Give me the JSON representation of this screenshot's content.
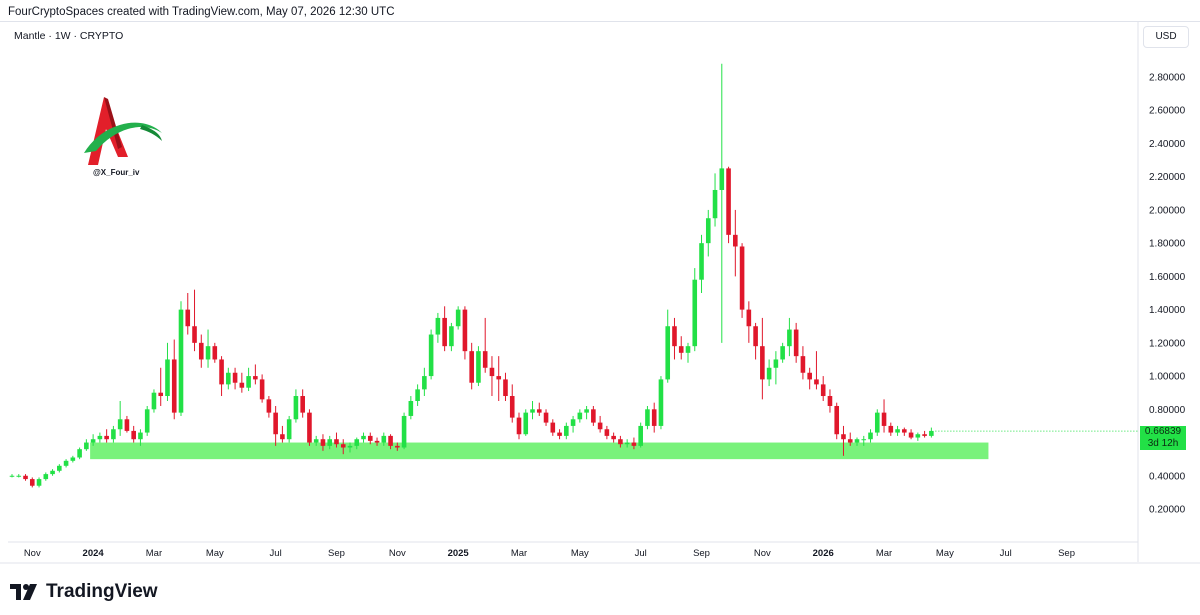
{
  "header": {
    "attribution": "FourCryptoSpaces created with TradingView.com, May 07, 2026 12:30 UTC"
  },
  "symbol": {
    "label": "Mantle · 1W · CRYPTO"
  },
  "currency": {
    "label": "USD"
  },
  "watermark": {
    "handle": "@X_Four_iv"
  },
  "last_price": {
    "value": "0.66839",
    "countdown": "3d 12h"
  },
  "footer": {
    "brand": "TradingView"
  },
  "colors": {
    "up": "#22e046",
    "down": "#e0172b",
    "support_zone": "#79f27b",
    "price_tag": "#22e046"
  },
  "chart_data": {
    "type": "candlestick",
    "title": "",
    "ylim": [
      0.0,
      3.0
    ],
    "y_ticks": [
      0.2,
      0.4,
      0.6,
      0.8,
      1.0,
      1.2,
      1.4,
      1.6,
      1.8,
      2.0,
      2.2,
      2.4,
      2.6,
      2.8
    ],
    "y_tick_labels": [
      "0.20000",
      "0.40000",
      "0.60000",
      "0.80000",
      "1.00000",
      "1.20000",
      "1.40000",
      "1.60000",
      "1.80000",
      "2.00000",
      "2.20000",
      "2.40000",
      "2.60000",
      "2.80000"
    ],
    "x_labels": [
      {
        "label": "Nov",
        "bold": false,
        "week": 3
      },
      {
        "label": "2024",
        "bold": true,
        "week": 12
      },
      {
        "label": "Mar",
        "bold": false,
        "week": 21
      },
      {
        "label": "May",
        "bold": false,
        "week": 30
      },
      {
        "label": "Jul",
        "bold": false,
        "week": 39
      },
      {
        "label": "Sep",
        "bold": false,
        "week": 48
      },
      {
        "label": "Nov",
        "bold": false,
        "week": 57
      },
      {
        "label": "2025",
        "bold": true,
        "week": 66
      },
      {
        "label": "Mar",
        "bold": false,
        "week": 75
      },
      {
        "label": "May",
        "bold": false,
        "week": 84
      },
      {
        "label": "Jul",
        "bold": false,
        "week": 93
      },
      {
        "label": "Sep",
        "bold": false,
        "week": 102
      },
      {
        "label": "Nov",
        "bold": false,
        "week": 111
      },
      {
        "label": "2026",
        "bold": true,
        "week": 120
      },
      {
        "label": "Mar",
        "bold": false,
        "week": 129
      },
      {
        "label": "May",
        "bold": false,
        "week": 138
      },
      {
        "label": "Jul",
        "bold": false,
        "week": 147
      },
      {
        "label": "Sep",
        "bold": false,
        "week": 156
      }
    ],
    "support_zone": {
      "low": 0.5,
      "high": 0.6,
      "start_week": 12,
      "end_week": 144
    },
    "last_price": 0.66839,
    "candles": [
      {
        "o": 0.4,
        "h": 0.41,
        "l": 0.39,
        "c": 0.4
      },
      {
        "o": 0.4,
        "h": 0.41,
        "l": 0.39,
        "c": 0.4
      },
      {
        "o": 0.4,
        "h": 0.41,
        "l": 0.37,
        "c": 0.38
      },
      {
        "o": 0.38,
        "h": 0.39,
        "l": 0.33,
        "c": 0.34
      },
      {
        "o": 0.34,
        "h": 0.39,
        "l": 0.33,
        "c": 0.38
      },
      {
        "o": 0.38,
        "h": 0.42,
        "l": 0.37,
        "c": 0.41
      },
      {
        "o": 0.41,
        "h": 0.44,
        "l": 0.4,
        "c": 0.43
      },
      {
        "o": 0.43,
        "h": 0.47,
        "l": 0.42,
        "c": 0.46
      },
      {
        "o": 0.46,
        "h": 0.5,
        "l": 0.45,
        "c": 0.49
      },
      {
        "o": 0.49,
        "h": 0.52,
        "l": 0.48,
        "c": 0.51
      },
      {
        "o": 0.51,
        "h": 0.57,
        "l": 0.5,
        "c": 0.56
      },
      {
        "o": 0.56,
        "h": 0.62,
        "l": 0.55,
        "c": 0.6
      },
      {
        "o": 0.6,
        "h": 0.65,
        "l": 0.58,
        "c": 0.62
      },
      {
        "o": 0.62,
        "h": 0.66,
        "l": 0.6,
        "c": 0.64
      },
      {
        "o": 0.64,
        "h": 0.68,
        "l": 0.6,
        "c": 0.62
      },
      {
        "o": 0.62,
        "h": 0.7,
        "l": 0.6,
        "c": 0.68
      },
      {
        "o": 0.68,
        "h": 0.85,
        "l": 0.64,
        "c": 0.74
      },
      {
        "o": 0.74,
        "h": 0.76,
        "l": 0.66,
        "c": 0.67
      },
      {
        "o": 0.67,
        "h": 0.7,
        "l": 0.6,
        "c": 0.62
      },
      {
        "o": 0.62,
        "h": 0.68,
        "l": 0.58,
        "c": 0.66
      },
      {
        "o": 0.66,
        "h": 0.82,
        "l": 0.64,
        "c": 0.8
      },
      {
        "o": 0.8,
        "h": 0.92,
        "l": 0.78,
        "c": 0.9
      },
      {
        "o": 0.9,
        "h": 1.05,
        "l": 0.82,
        "c": 0.88
      },
      {
        "o": 0.88,
        "h": 1.2,
        "l": 0.85,
        "c": 1.1
      },
      {
        "o": 1.1,
        "h": 1.22,
        "l": 0.74,
        "c": 0.78
      },
      {
        "o": 0.78,
        "h": 1.45,
        "l": 0.76,
        "c": 1.4
      },
      {
        "o": 1.4,
        "h": 1.5,
        "l": 1.25,
        "c": 1.3
      },
      {
        "o": 1.3,
        "h": 1.52,
        "l": 1.15,
        "c": 1.2
      },
      {
        "o": 1.2,
        "h": 1.25,
        "l": 1.05,
        "c": 1.1
      },
      {
        "o": 1.1,
        "h": 1.28,
        "l": 1.05,
        "c": 1.18
      },
      {
        "o": 1.18,
        "h": 1.2,
        "l": 1.08,
        "c": 1.1
      },
      {
        "o": 1.1,
        "h": 1.12,
        "l": 0.88,
        "c": 0.95
      },
      {
        "o": 0.95,
        "h": 1.05,
        "l": 0.92,
        "c": 1.02
      },
      {
        "o": 1.02,
        "h": 1.05,
        "l": 0.92,
        "c": 0.96
      },
      {
        "o": 0.96,
        "h": 1.02,
        "l": 0.9,
        "c": 0.93
      },
      {
        "o": 0.93,
        "h": 1.05,
        "l": 0.91,
        "c": 1.0
      },
      {
        "o": 1.0,
        "h": 1.07,
        "l": 0.95,
        "c": 0.98
      },
      {
        "o": 0.98,
        "h": 1.01,
        "l": 0.84,
        "c": 0.86
      },
      {
        "o": 0.86,
        "h": 0.88,
        "l": 0.75,
        "c": 0.78
      },
      {
        "o": 0.78,
        "h": 0.82,
        "l": 0.58,
        "c": 0.65
      },
      {
        "o": 0.65,
        "h": 0.7,
        "l": 0.6,
        "c": 0.62
      },
      {
        "o": 0.62,
        "h": 0.76,
        "l": 0.6,
        "c": 0.74
      },
      {
        "o": 0.74,
        "h": 0.92,
        "l": 0.72,
        "c": 0.88
      },
      {
        "o": 0.88,
        "h": 0.92,
        "l": 0.75,
        "c": 0.78
      },
      {
        "o": 0.78,
        "h": 0.8,
        "l": 0.58,
        "c": 0.6
      },
      {
        "o": 0.6,
        "h": 0.64,
        "l": 0.58,
        "c": 0.62
      },
      {
        "o": 0.62,
        "h": 0.65,
        "l": 0.55,
        "c": 0.58
      },
      {
        "o": 0.58,
        "h": 0.64,
        "l": 0.56,
        "c": 0.62
      },
      {
        "o": 0.62,
        "h": 0.66,
        "l": 0.57,
        "c": 0.59
      },
      {
        "o": 0.59,
        "h": 0.62,
        "l": 0.53,
        "c": 0.57
      },
      {
        "o": 0.57,
        "h": 0.6,
        "l": 0.54,
        "c": 0.58
      },
      {
        "o": 0.58,
        "h": 0.63,
        "l": 0.56,
        "c": 0.62
      },
      {
        "o": 0.62,
        "h": 0.66,
        "l": 0.6,
        "c": 0.64
      },
      {
        "o": 0.64,
        "h": 0.66,
        "l": 0.59,
        "c": 0.61
      },
      {
        "o": 0.61,
        "h": 0.63,
        "l": 0.58,
        "c": 0.6
      },
      {
        "o": 0.6,
        "h": 0.66,
        "l": 0.58,
        "c": 0.64
      },
      {
        "o": 0.64,
        "h": 0.65,
        "l": 0.56,
        "c": 0.58
      },
      {
        "o": 0.58,
        "h": 0.6,
        "l": 0.55,
        "c": 0.57
      },
      {
        "o": 0.57,
        "h": 0.78,
        "l": 0.56,
        "c": 0.76
      },
      {
        "o": 0.76,
        "h": 0.88,
        "l": 0.74,
        "c": 0.85
      },
      {
        "o": 0.85,
        "h": 0.95,
        "l": 0.82,
        "c": 0.92
      },
      {
        "o": 0.92,
        "h": 1.05,
        "l": 0.88,
        "c": 1.0
      },
      {
        "o": 1.0,
        "h": 1.28,
        "l": 0.98,
        "c": 1.25
      },
      {
        "o": 1.25,
        "h": 1.38,
        "l": 1.2,
        "c": 1.35
      },
      {
        "o": 1.35,
        "h": 1.42,
        "l": 1.15,
        "c": 1.18
      },
      {
        "o": 1.18,
        "h": 1.32,
        "l": 1.15,
        "c": 1.3
      },
      {
        "o": 1.3,
        "h": 1.42,
        "l": 1.28,
        "c": 1.4
      },
      {
        "o": 1.4,
        "h": 1.42,
        "l": 1.1,
        "c": 1.15
      },
      {
        "o": 1.15,
        "h": 1.2,
        "l": 0.92,
        "c": 0.96
      },
      {
        "o": 0.96,
        "h": 1.18,
        "l": 0.94,
        "c": 1.15
      },
      {
        "o": 1.15,
        "h": 1.35,
        "l": 1.02,
        "c": 1.05
      },
      {
        "o": 1.05,
        "h": 1.12,
        "l": 0.88,
        "c": 1.0
      },
      {
        "o": 1.0,
        "h": 1.12,
        "l": 0.85,
        "c": 0.98
      },
      {
        "o": 0.98,
        "h": 1.02,
        "l": 0.85,
        "c": 0.88
      },
      {
        "o": 0.88,
        "h": 0.95,
        "l": 0.72,
        "c": 0.75
      },
      {
        "o": 0.75,
        "h": 0.78,
        "l": 0.62,
        "c": 0.65
      },
      {
        "o": 0.65,
        "h": 0.8,
        "l": 0.64,
        "c": 0.78
      },
      {
        "o": 0.78,
        "h": 0.85,
        "l": 0.74,
        "c": 0.8
      },
      {
        "o": 0.8,
        "h": 0.84,
        "l": 0.76,
        "c": 0.78
      },
      {
        "o": 0.78,
        "h": 0.8,
        "l": 0.7,
        "c": 0.72
      },
      {
        "o": 0.72,
        "h": 0.74,
        "l": 0.64,
        "c": 0.66
      },
      {
        "o": 0.66,
        "h": 0.68,
        "l": 0.62,
        "c": 0.64
      },
      {
        "o": 0.64,
        "h": 0.72,
        "l": 0.62,
        "c": 0.7
      },
      {
        "o": 0.7,
        "h": 0.76,
        "l": 0.66,
        "c": 0.74
      },
      {
        "o": 0.74,
        "h": 0.8,
        "l": 0.72,
        "c": 0.78
      },
      {
        "o": 0.78,
        "h": 0.82,
        "l": 0.74,
        "c": 0.8
      },
      {
        "o": 0.8,
        "h": 0.82,
        "l": 0.7,
        "c": 0.72
      },
      {
        "o": 0.72,
        "h": 0.76,
        "l": 0.66,
        "c": 0.68
      },
      {
        "o": 0.68,
        "h": 0.7,
        "l": 0.62,
        "c": 0.64
      },
      {
        "o": 0.64,
        "h": 0.66,
        "l": 0.6,
        "c": 0.62
      },
      {
        "o": 0.62,
        "h": 0.64,
        "l": 0.57,
        "c": 0.59
      },
      {
        "o": 0.59,
        "h": 0.62,
        "l": 0.57,
        "c": 0.6
      },
      {
        "o": 0.6,
        "h": 0.63,
        "l": 0.56,
        "c": 0.58
      },
      {
        "o": 0.58,
        "h": 0.72,
        "l": 0.57,
        "c": 0.7
      },
      {
        "o": 0.7,
        "h": 0.82,
        "l": 0.68,
        "c": 0.8
      },
      {
        "o": 0.8,
        "h": 0.84,
        "l": 0.66,
        "c": 0.7
      },
      {
        "o": 0.7,
        "h": 1.0,
        "l": 0.68,
        "c": 0.98
      },
      {
        "o": 0.98,
        "h": 1.4,
        "l": 0.96,
        "c": 1.3
      },
      {
        "o": 1.3,
        "h": 1.35,
        "l": 1.1,
        "c": 1.18
      },
      {
        "o": 1.18,
        "h": 1.24,
        "l": 1.1,
        "c": 1.14
      },
      {
        "o": 1.14,
        "h": 1.2,
        "l": 1.08,
        "c": 1.18
      },
      {
        "o": 1.18,
        "h": 1.65,
        "l": 1.15,
        "c": 1.58
      },
      {
        "o": 1.58,
        "h": 1.85,
        "l": 1.5,
        "c": 1.8
      },
      {
        "o": 1.8,
        "h": 2.0,
        "l": 1.72,
        "c": 1.95
      },
      {
        "o": 1.95,
        "h": 2.22,
        "l": 1.9,
        "c": 2.12
      },
      {
        "o": 2.12,
        "h": 2.88,
        "l": 1.2,
        "c": 2.25
      },
      {
        "o": 2.25,
        "h": 2.26,
        "l": 1.8,
        "c": 1.85
      },
      {
        "o": 1.85,
        "h": 2.0,
        "l": 1.6,
        "c": 1.78
      },
      {
        "o": 1.78,
        "h": 1.8,
        "l": 1.35,
        "c": 1.4
      },
      {
        "o": 1.4,
        "h": 1.45,
        "l": 1.2,
        "c": 1.3
      },
      {
        "o": 1.3,
        "h": 1.32,
        "l": 1.1,
        "c": 1.18
      },
      {
        "o": 1.18,
        "h": 1.35,
        "l": 0.86,
        "c": 0.98
      },
      {
        "o": 0.98,
        "h": 1.1,
        "l": 0.94,
        "c": 1.05
      },
      {
        "o": 1.05,
        "h": 1.15,
        "l": 0.95,
        "c": 1.1
      },
      {
        "o": 1.1,
        "h": 1.2,
        "l": 1.08,
        "c": 1.18
      },
      {
        "o": 1.18,
        "h": 1.35,
        "l": 1.12,
        "c": 1.28
      },
      {
        "o": 1.28,
        "h": 1.32,
        "l": 1.08,
        "c": 1.12
      },
      {
        "o": 1.12,
        "h": 1.18,
        "l": 0.98,
        "c": 1.02
      },
      {
        "o": 1.02,
        "h": 1.05,
        "l": 0.92,
        "c": 0.98
      },
      {
        "o": 0.98,
        "h": 1.15,
        "l": 0.92,
        "c": 0.95
      },
      {
        "o": 0.95,
        "h": 1.0,
        "l": 0.85,
        "c": 0.88
      },
      {
        "o": 0.88,
        "h": 0.92,
        "l": 0.78,
        "c": 0.82
      },
      {
        "o": 0.82,
        "h": 0.84,
        "l": 0.62,
        "c": 0.65
      },
      {
        "o": 0.65,
        "h": 0.7,
        "l": 0.52,
        "c": 0.62
      },
      {
        "o": 0.62,
        "h": 0.66,
        "l": 0.58,
        "c": 0.6
      },
      {
        "o": 0.6,
        "h": 0.63,
        "l": 0.58,
        "c": 0.62
      },
      {
        "o": 0.62,
        "h": 0.64,
        "l": 0.58,
        "c": 0.62
      },
      {
        "o": 0.62,
        "h": 0.68,
        "l": 0.6,
        "c": 0.66
      },
      {
        "o": 0.66,
        "h": 0.8,
        "l": 0.64,
        "c": 0.78
      },
      {
        "o": 0.78,
        "h": 0.86,
        "l": 0.66,
        "c": 0.7
      },
      {
        "o": 0.7,
        "h": 0.72,
        "l": 0.64,
        "c": 0.66
      },
      {
        "o": 0.66,
        "h": 0.7,
        "l": 0.64,
        "c": 0.68
      },
      {
        "o": 0.68,
        "h": 0.69,
        "l": 0.64,
        "c": 0.66
      },
      {
        "o": 0.66,
        "h": 0.68,
        "l": 0.62,
        "c": 0.63
      },
      {
        "o": 0.63,
        "h": 0.66,
        "l": 0.61,
        "c": 0.65
      },
      {
        "o": 0.65,
        "h": 0.67,
        "l": 0.63,
        "c": 0.64
      },
      {
        "o": 0.64,
        "h": 0.69,
        "l": 0.63,
        "c": 0.67
      }
    ]
  }
}
